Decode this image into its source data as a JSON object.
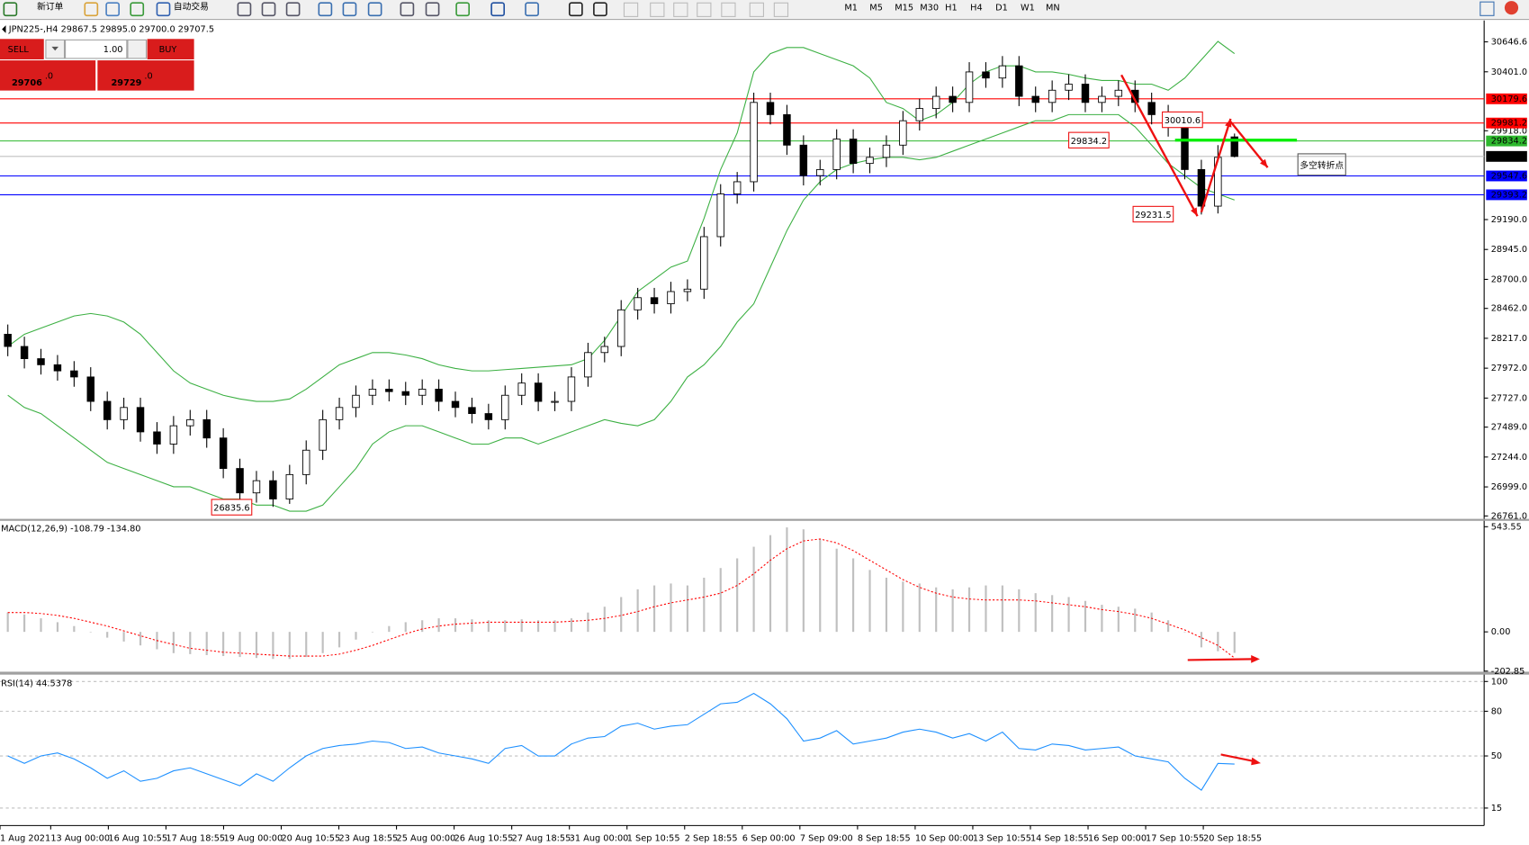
{
  "toolbar": {
    "new_order": "新订单",
    "auto_trading": "自动交易",
    "timeframes": [
      "M1",
      "M5",
      "M15",
      "M30",
      "H1",
      "H4",
      "D1",
      "W1",
      "MN"
    ]
  },
  "trade_panel": {
    "sell": "SELL",
    "lot": "1.00",
    "buy": "BUY",
    "sell_price": "29706",
    "sell_frac": ".0",
    "buy_price": "29729",
    "buy_frac": ".0"
  },
  "chart_data": [
    {
      "type": "candlestick",
      "title": "JPN225-,H4 29867.5 29895.0 29700.0 29707.5",
      "open": [
        28250,
        28150,
        28050,
        28000,
        27950,
        27900,
        27700,
        27550,
        27650,
        27450,
        27350,
        27500,
        27550,
        27400,
        27150,
        26950,
        27050,
        26900,
        27100,
        27300,
        27550,
        27650,
        27750,
        27800,
        27780,
        27750,
        27800,
        27700,
        27650,
        27600,
        27550,
        27750,
        27850,
        27700,
        27700,
        27900,
        28100,
        28150,
        28450,
        28550,
        28500,
        28600,
        28620,
        29050,
        29400,
        29500,
        30150,
        30050,
        29800,
        29550,
        29600,
        29850,
        29650,
        29700,
        29800,
        30000,
        30100,
        30200,
        30150,
        30400,
        30350,
        30450,
        30200,
        30150,
        30250,
        30300,
        30150,
        30200,
        30250,
        30150,
        30050,
        29950,
        29600,
        29300,
        29867.5
      ],
      "high": [
        28330,
        28230,
        28130,
        28080,
        28030,
        27980,
        27780,
        27730,
        27730,
        27530,
        27580,
        27630,
        27630,
        27480,
        27230,
        27130,
        27130,
        27180,
        27380,
        27630,
        27730,
        27830,
        27880,
        27880,
        27860,
        27880,
        27880,
        27780,
        27730,
        27680,
        27830,
        27930,
        27930,
        27780,
        27980,
        28180,
        28230,
        28530,
        28630,
        28630,
        28680,
        28700,
        29130,
        29480,
        29580,
        30230,
        30230,
        30130,
        29880,
        29680,
        29930,
        29930,
        29780,
        29880,
        30080,
        30180,
        30280,
        30280,
        30480,
        30480,
        30530,
        30530,
        30280,
        30330,
        30380,
        30380,
        30280,
        30330,
        30330,
        30230,
        30130,
        30030,
        29680,
        29800,
        29895
      ],
      "low": [
        28070,
        27970,
        27920,
        27870,
        27820,
        27620,
        27470,
        27470,
        27370,
        27270,
        27270,
        27420,
        27320,
        27070,
        26870,
        26870,
        26835.6,
        26860,
        27020,
        27220,
        27470,
        27570,
        27670,
        27700,
        27670,
        27670,
        27620,
        27570,
        27520,
        27470,
        27470,
        27670,
        27620,
        27620,
        27620,
        27820,
        28020,
        28070,
        28370,
        28420,
        28420,
        28520,
        28540,
        28970,
        29320,
        29420,
        29970,
        29720,
        29470,
        29470,
        29520,
        29570,
        29570,
        29620,
        29720,
        29920,
        30020,
        30070,
        30070,
        30270,
        30270,
        30120,
        30070,
        30070,
        30170,
        30070,
        30070,
        30120,
        30070,
        29970,
        29870,
        29520,
        29231.5,
        29240,
        29700
      ],
      "close": [
        28150,
        28050,
        28000,
        27950,
        27900,
        27700,
        27550,
        27650,
        27450,
        27350,
        27500,
        27550,
        27400,
        27150,
        26950,
        27050,
        26900,
        27100,
        27300,
        27550,
        27650,
        27750,
        27800,
        27780,
        27750,
        27800,
        27700,
        27650,
        27600,
        27550,
        27750,
        27850,
        27700,
        27700,
        27900,
        28100,
        28150,
        28450,
        28550,
        28500,
        28600,
        28620,
        29050,
        29400,
        29500,
        30150,
        30050,
        29800,
        29550,
        29600,
        29850,
        29650,
        29700,
        29800,
        30000,
        30100,
        30200,
        30150,
        30400,
        30350,
        30450,
        30200,
        30150,
        30250,
        30300,
        30150,
        30200,
        30250,
        30150,
        30050,
        29950,
        29600,
        29300,
        29700,
        29707.5
      ],
      "upper_band": [
        28150,
        28250,
        28300,
        28350,
        28400,
        28420,
        28400,
        28350,
        28250,
        28100,
        27950,
        27850,
        27800,
        27750,
        27720,
        27700,
        27700,
        27720,
        27800,
        27900,
        28000,
        28050,
        28100,
        28100,
        28080,
        28050,
        28000,
        27970,
        27950,
        27950,
        27960,
        27970,
        27980,
        27990,
        28000,
        28050,
        28200,
        28400,
        28600,
        28700,
        28800,
        28850,
        29200,
        29600,
        29900,
        30400,
        30550,
        30600,
        30600,
        30550,
        30500,
        30450,
        30350,
        30150,
        30100,
        30000,
        30050,
        30150,
        30300,
        30400,
        30450,
        30450,
        30400,
        30400,
        30380,
        30350,
        30330,
        30330,
        30300,
        30300,
        30250,
        30350,
        30500,
        30650,
        30550
      ],
      "lower_band": [
        27750,
        27650,
        27600,
        27500,
        27400,
        27300,
        27200,
        27150,
        27100,
        27050,
        27000,
        27000,
        26950,
        26900,
        26900,
        26850,
        26850,
        26800,
        26800,
        26850,
        27000,
        27150,
        27350,
        27450,
        27500,
        27500,
        27450,
        27400,
        27350,
        27350,
        27400,
        27400,
        27350,
        27400,
        27450,
        27500,
        27550,
        27520,
        27500,
        27550,
        27700,
        27900,
        28000,
        28150,
        28350,
        28500,
        28800,
        29100,
        29350,
        29500,
        29600,
        29650,
        29680,
        29700,
        29700,
        29680,
        29700,
        29750,
        29800,
        29850,
        29900,
        29950,
        30000,
        30000,
        30050,
        30050,
        30050,
        30050,
        29950,
        29800,
        29650,
        29550,
        29450,
        29400,
        29350
      ],
      "band_color": "#3cb043",
      "ylim": [
        26737,
        30798
      ],
      "yticks": [
        30646.6,
        {
          "value": 30401,
          "label": "30401.0"
        },
        {
          "value": 29918,
          "label": "29918.0"
        },
        {
          "value": 29190,
          "label": "29190.0"
        },
        {
          "value": 28945,
          "label": "28945.0"
        },
        {
          "value": 28700,
          "label": "28700.0"
        },
        {
          "value": 28462,
          "label": "28462.0"
        },
        {
          "value": 28217,
          "label": "28217.0"
        },
        {
          "value": 27972,
          "label": "27972.0"
        },
        {
          "value": 27727,
          "label": "27727.0"
        },
        {
          "value": 27489,
          "label": "27489.0"
        },
        {
          "value": 27244,
          "label": "27244.0"
        },
        {
          "value": 26999,
          "label": "26999.0"
        },
        {
          "value": 26761,
          "label": "26761.0"
        }
      ],
      "hlines": [
        {
          "value": 30179.6,
          "color": "#ff0000"
        },
        {
          "value": 29981.2,
          "color": "#ff0000"
        },
        {
          "value": 29834.2,
          "color": "#2db82d"
        },
        {
          "value": 29547.6,
          "color": "#0000ff"
        },
        {
          "value": 29393.2,
          "color": "#0000ff"
        }
      ],
      "price_labels": [
        26835.6,
        29834.2,
        30010.6,
        29231.5
      ],
      "annotation": "多空转折点"
    },
    {
      "type": "macd",
      "title": "MACD(12,26,9) -108.79 -134.80",
      "histogram": [
        100,
        90,
        70,
        50,
        30,
        0,
        -30,
        -50,
        -70,
        -90,
        -110,
        -115,
        -120,
        -125,
        -130,
        -135,
        -140,
        -140,
        -130,
        -110,
        -80,
        -40,
        0,
        30,
        50,
        60,
        70,
        70,
        65,
        60,
        60,
        65,
        60,
        60,
        70,
        100,
        130,
        180,
        220,
        240,
        250,
        240,
        280,
        330,
        380,
        440,
        500,
        540,
        530,
        480,
        430,
        380,
        320,
        280,
        260,
        250,
        230,
        220,
        230,
        240,
        240,
        220,
        200,
        190,
        180,
        160,
        140,
        130,
        120,
        100,
        60,
        0,
        -80,
        -100,
        -108.79
      ],
      "signal": [
        100,
        100,
        95,
        85,
        70,
        50,
        30,
        5,
        -20,
        -45,
        -65,
        -85,
        -95,
        -105,
        -110,
        -115,
        -120,
        -125,
        -125,
        -125,
        -115,
        -95,
        -70,
        -40,
        -10,
        15,
        30,
        40,
        45,
        50,
        50,
        50,
        50,
        50,
        55,
        60,
        70,
        85,
        105,
        130,
        150,
        165,
        180,
        200,
        240,
        300,
        370,
        430,
        470,
        480,
        460,
        420,
        370,
        320,
        270,
        230,
        200,
        180,
        170,
        165,
        165,
        165,
        160,
        150,
        140,
        130,
        115,
        105,
        90,
        70,
        40,
        10,
        -30,
        -70,
        -134.8
      ],
      "histogram_color": "#c0c0c0",
      "signal_color": "#ff0000",
      "ylim": [
        -206,
        574
      ],
      "yticks": [
        543.55,
        {
          "value": 0,
          "label": "0.00"
        },
        -202.85
      ]
    },
    {
      "type": "rsi",
      "title": "RSI(14) 44.5378",
      "values": [
        50,
        45,
        50,
        52,
        48,
        42,
        35,
        40,
        33,
        35,
        40,
        42,
        38,
        34,
        30,
        38,
        33,
        42,
        50,
        55,
        57,
        58,
        60,
        59,
        55,
        56,
        52,
        50,
        48,
        45,
        55,
        57,
        50,
        50,
        58,
        62,
        63,
        70,
        72,
        68,
        70,
        71,
        78,
        85,
        86,
        92,
        85,
        75,
        60,
        62,
        67,
        58,
        60,
        62,
        66,
        68,
        66,
        62,
        65,
        60,
        66,
        55,
        54,
        58,
        57,
        54,
        55,
        56,
        50,
        48,
        46,
        35,
        27,
        45,
        44.5378
      ],
      "color": "#1e90ff",
      "ylim": [
        9.8,
        104.6
      ],
      "yticks": [
        100,
        80,
        50,
        15
      ],
      "time_labels": [
        "1 Aug 2021",
        "13 Aug 00:00",
        "16 Aug 10:55",
        "17 Aug 18:55",
        "19 Aug 00:00",
        "20 Aug 10:55",
        "23 Aug 18:55",
        "25 Aug 00:00",
        "26 Aug 10:55",
        "27 Aug 18:55",
        "31 Aug 00:00",
        "1 Sep 10:55",
        "2 Sep 18:55",
        "6 Sep 00:00",
        "7 Sep 09:00",
        "8 Sep 18:55",
        "10 Sep 00:00",
        "13 Sep 10:55",
        "14 Sep 18:55",
        "16 Sep 00:00",
        "17 Sep 10:55",
        "20 Sep 18:55"
      ]
    }
  ]
}
